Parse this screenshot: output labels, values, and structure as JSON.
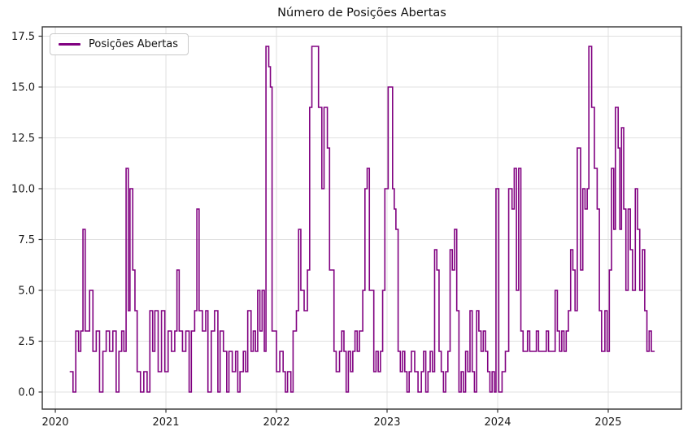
{
  "title": "Número de Posições Abertas",
  "legend": {
    "label": "Posições Abertas"
  },
  "colors": {
    "line": "#800080",
    "grid": "#e0e0e0",
    "spine": "#333333",
    "background": "#ffffff",
    "legend_border": "#c9c9c9"
  },
  "axes": {
    "x_tick_labels": [
      "2020",
      "2021",
      "2022",
      "2023",
      "2024",
      "2025"
    ],
    "y_tick_labels": [
      "0.0",
      "2.5",
      "5.0",
      "7.5",
      "10.0",
      "12.5",
      "15.0",
      "17.5"
    ]
  },
  "chart_data": {
    "type": "line",
    "step": "post",
    "title": "Número de Posições Abertas",
    "xlabel": "",
    "ylabel": "",
    "grid": true,
    "legend_position": "upper left",
    "xlim": [
      2019.882,
      2025.662
    ],
    "ylim": [
      -0.84,
      17.96
    ],
    "x_ticks": [
      [
        2020,
        "2020"
      ],
      [
        2021,
        "2021"
      ],
      [
        2022,
        "2022"
      ],
      [
        2023,
        "2023"
      ],
      [
        2024,
        "2024"
      ],
      [
        2025,
        "2025"
      ]
    ],
    "y_ticks": [
      [
        0,
        "0.0"
      ],
      [
        2.5,
        "2.5"
      ],
      [
        5,
        "5.0"
      ],
      [
        7.5,
        "7.5"
      ],
      [
        10,
        "10.0"
      ],
      [
        12.5,
        "12.5"
      ],
      [
        15,
        "15.0"
      ],
      [
        17.5,
        "17.5"
      ]
    ],
    "series": [
      {
        "name": "Posições Abertas",
        "color": "#800080",
        "points": [
          [
            2020.13,
            1
          ],
          [
            2020.16,
            0
          ],
          [
            2020.185,
            3
          ],
          [
            2020.21,
            2
          ],
          [
            2020.23,
            3
          ],
          [
            2020.25,
            8
          ],
          [
            2020.27,
            3
          ],
          [
            2020.31,
            5
          ],
          [
            2020.34,
            2
          ],
          [
            2020.37,
            3
          ],
          [
            2020.4,
            0
          ],
          [
            2020.43,
            2
          ],
          [
            2020.46,
            3
          ],
          [
            2020.49,
            2
          ],
          [
            2020.52,
            3
          ],
          [
            2020.55,
            0
          ],
          [
            2020.575,
            2
          ],
          [
            2020.6,
            3
          ],
          [
            2020.62,
            2
          ],
          [
            2020.64,
            11
          ],
          [
            2020.66,
            4
          ],
          [
            2020.675,
            10
          ],
          [
            2020.7,
            6
          ],
          [
            2020.72,
            4
          ],
          [
            2020.74,
            1
          ],
          [
            2020.77,
            0
          ],
          [
            2020.8,
            1
          ],
          [
            2020.83,
            0
          ],
          [
            2020.855,
            4
          ],
          [
            2020.88,
            2
          ],
          [
            2020.9,
            4
          ],
          [
            2020.93,
            1
          ],
          [
            2020.96,
            4
          ],
          [
            2020.99,
            1
          ],
          [
            2021.02,
            3
          ],
          [
            2021.05,
            2
          ],
          [
            2021.08,
            3
          ],
          [
            2021.1,
            6
          ],
          [
            2021.12,
            3
          ],
          [
            2021.15,
            2
          ],
          [
            2021.18,
            3
          ],
          [
            2021.21,
            0
          ],
          [
            2021.23,
            3
          ],
          [
            2021.26,
            4
          ],
          [
            2021.28,
            9
          ],
          [
            2021.3,
            4
          ],
          [
            2021.33,
            3
          ],
          [
            2021.36,
            4
          ],
          [
            2021.38,
            0
          ],
          [
            2021.41,
            3
          ],
          [
            2021.44,
            4
          ],
          [
            2021.47,
            0
          ],
          [
            2021.49,
            3
          ],
          [
            2021.52,
            2
          ],
          [
            2021.55,
            0
          ],
          [
            2021.57,
            2
          ],
          [
            2021.6,
            1
          ],
          [
            2021.63,
            2
          ],
          [
            2021.65,
            0
          ],
          [
            2021.67,
            1
          ],
          [
            2021.7,
            2
          ],
          [
            2021.72,
            1
          ],
          [
            2021.74,
            4
          ],
          [
            2021.77,
            2
          ],
          [
            2021.79,
            3
          ],
          [
            2021.81,
            2
          ],
          [
            2021.83,
            5
          ],
          [
            2021.85,
            3
          ],
          [
            2021.87,
            5
          ],
          [
            2021.89,
            2
          ],
          [
            2021.905,
            17
          ],
          [
            2021.93,
            16
          ],
          [
            2021.945,
            15
          ],
          [
            2021.96,
            3
          ],
          [
            2022.0,
            1
          ],
          [
            2022.03,
            2
          ],
          [
            2022.06,
            1
          ],
          [
            2022.08,
            0
          ],
          [
            2022.1,
            1
          ],
          [
            2022.13,
            0
          ],
          [
            2022.15,
            3
          ],
          [
            2022.18,
            4
          ],
          [
            2022.2,
            8
          ],
          [
            2022.22,
            5
          ],
          [
            2022.25,
            4
          ],
          [
            2022.28,
            6
          ],
          [
            2022.3,
            14
          ],
          [
            2022.32,
            17
          ],
          [
            2022.38,
            14
          ],
          [
            2022.41,
            10
          ],
          [
            2022.43,
            14
          ],
          [
            2022.46,
            12
          ],
          [
            2022.48,
            6
          ],
          [
            2022.52,
            2
          ],
          [
            2022.54,
            1
          ],
          [
            2022.57,
            2
          ],
          [
            2022.59,
            3
          ],
          [
            2022.61,
            2
          ],
          [
            2022.63,
            0
          ],
          [
            2022.65,
            2
          ],
          [
            2022.67,
            1
          ],
          [
            2022.69,
            2
          ],
          [
            2022.71,
            3
          ],
          [
            2022.73,
            2
          ],
          [
            2022.75,
            3
          ],
          [
            2022.78,
            5
          ],
          [
            2022.8,
            10
          ],
          [
            2022.82,
            11
          ],
          [
            2022.84,
            5
          ],
          [
            2022.88,
            1
          ],
          [
            2022.9,
            2
          ],
          [
            2022.92,
            1
          ],
          [
            2022.94,
            2
          ],
          [
            2022.96,
            5
          ],
          [
            2022.98,
            10
          ],
          [
            2023.01,
            15
          ],
          [
            2023.05,
            10
          ],
          [
            2023.065,
            9
          ],
          [
            2023.08,
            8
          ],
          [
            2023.1,
            2
          ],
          [
            2023.12,
            1
          ],
          [
            2023.14,
            2
          ],
          [
            2023.16,
            1
          ],
          [
            2023.18,
            0
          ],
          [
            2023.2,
            1
          ],
          [
            2023.22,
            2
          ],
          [
            2023.25,
            1
          ],
          [
            2023.28,
            0
          ],
          [
            2023.31,
            1
          ],
          [
            2023.33,
            2
          ],
          [
            2023.35,
            0
          ],
          [
            2023.37,
            1
          ],
          [
            2023.39,
            2
          ],
          [
            2023.41,
            1
          ],
          [
            2023.43,
            7
          ],
          [
            2023.45,
            6
          ],
          [
            2023.47,
            2
          ],
          [
            2023.49,
            1
          ],
          [
            2023.51,
            0
          ],
          [
            2023.53,
            1
          ],
          [
            2023.55,
            2
          ],
          [
            2023.57,
            7
          ],
          [
            2023.59,
            6
          ],
          [
            2023.61,
            8
          ],
          [
            2023.63,
            4
          ],
          [
            2023.65,
            0
          ],
          [
            2023.67,
            1
          ],
          [
            2023.69,
            0
          ],
          [
            2023.71,
            2
          ],
          [
            2023.73,
            1
          ],
          [
            2023.75,
            4
          ],
          [
            2023.77,
            1
          ],
          [
            2023.79,
            0
          ],
          [
            2023.81,
            4
          ],
          [
            2023.83,
            3
          ],
          [
            2023.85,
            2
          ],
          [
            2023.87,
            3
          ],
          [
            2023.89,
            2
          ],
          [
            2023.91,
            1
          ],
          [
            2023.93,
            0
          ],
          [
            2023.95,
            1
          ],
          [
            2023.97,
            0
          ],
          [
            2023.985,
            10
          ],
          [
            2024.01,
            0
          ],
          [
            2024.04,
            1
          ],
          [
            2024.07,
            2
          ],
          [
            2024.1,
            10
          ],
          [
            2024.13,
            9
          ],
          [
            2024.15,
            11
          ],
          [
            2024.17,
            5
          ],
          [
            2024.19,
            11
          ],
          [
            2024.21,
            3
          ],
          [
            2024.23,
            2
          ],
          [
            2024.27,
            3
          ],
          [
            2024.29,
            2
          ],
          [
            2024.33,
            2
          ],
          [
            2024.35,
            3
          ],
          [
            2024.37,
            2
          ],
          [
            2024.41,
            2
          ],
          [
            2024.44,
            3
          ],
          [
            2024.46,
            2
          ],
          [
            2024.5,
            2
          ],
          [
            2024.52,
            5
          ],
          [
            2024.54,
            3
          ],
          [
            2024.56,
            2
          ],
          [
            2024.58,
            3
          ],
          [
            2024.6,
            2
          ],
          [
            2024.62,
            3
          ],
          [
            2024.64,
            4
          ],
          [
            2024.66,
            7
          ],
          [
            2024.68,
            6
          ],
          [
            2024.7,
            4
          ],
          [
            2024.72,
            12
          ],
          [
            2024.75,
            6
          ],
          [
            2024.77,
            10
          ],
          [
            2024.79,
            9
          ],
          [
            2024.81,
            10
          ],
          [
            2024.825,
            17
          ],
          [
            2024.85,
            14
          ],
          [
            2024.875,
            11
          ],
          [
            2024.9,
            9
          ],
          [
            2024.92,
            4
          ],
          [
            2024.94,
            2
          ],
          [
            2024.97,
            4
          ],
          [
            2024.99,
            2
          ],
          [
            2025.01,
            6
          ],
          [
            2025.03,
            11
          ],
          [
            2025.05,
            8
          ],
          [
            2025.065,
            14
          ],
          [
            2025.09,
            12
          ],
          [
            2025.105,
            8
          ],
          [
            2025.12,
            13
          ],
          [
            2025.14,
            9
          ],
          [
            2025.16,
            5
          ],
          [
            2025.18,
            9
          ],
          [
            2025.2,
            7
          ],
          [
            2025.22,
            5
          ],
          [
            2025.245,
            10
          ],
          [
            2025.265,
            8
          ],
          [
            2025.285,
            5
          ],
          [
            2025.31,
            7
          ],
          [
            2025.33,
            4
          ],
          [
            2025.35,
            2
          ],
          [
            2025.37,
            3
          ],
          [
            2025.39,
            2
          ],
          [
            2025.42,
            2
          ]
        ]
      }
    ]
  }
}
